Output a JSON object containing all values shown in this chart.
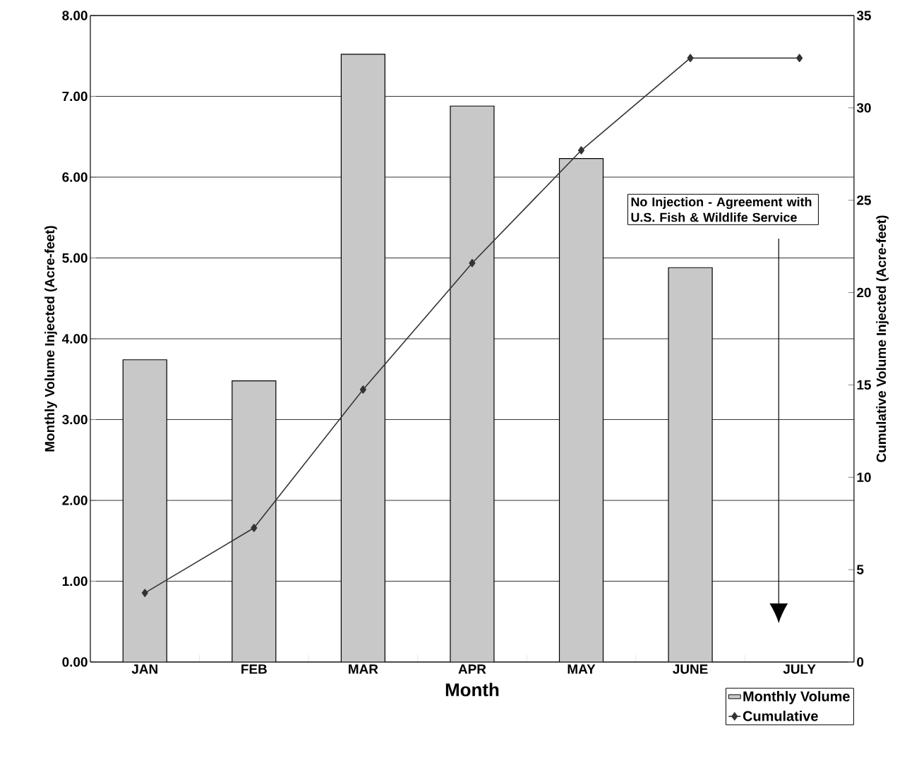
{
  "chart_data": {
    "type": "bar",
    "xlabel": "Month",
    "ylabel": "Monthly Volume Injected (Acre-feet)",
    "y2label": "Cumulative Volume Injected (Acre-feet)",
    "categories": [
      "JAN",
      "FEB",
      "MAR",
      "APR",
      "MAY",
      "JUNE",
      "JULY"
    ],
    "series": [
      {
        "name": "Monthly Volume",
        "color": "#c8c8c8",
        "values": [
          3.74,
          3.48,
          7.52,
          6.88,
          6.23,
          4.88,
          null
        ]
      },
      {
        "name": "Cumulative",
        "type": "line",
        "axis": "y2",
        "color": "#333333",
        "marker": "diamond",
        "values": [
          3.74,
          7.26,
          14.75,
          21.6,
          27.7,
          32.7,
          32.7
        ]
      }
    ],
    "ylim": [
      0,
      8
    ],
    "yticks": [
      {
        "value": 0,
        "label": "0.00"
      },
      {
        "value": 1,
        "label": "1.00"
      },
      {
        "value": 2,
        "label": "2.00"
      },
      {
        "value": 3,
        "label": "3.00"
      },
      {
        "value": 4,
        "label": "4.00"
      },
      {
        "value": 5,
        "label": "5.00"
      },
      {
        "value": 6,
        "label": "6.00"
      },
      {
        "value": 7,
        "label": "7.00"
      },
      {
        "value": 8,
        "label": "8.00"
      }
    ],
    "y2lim": [
      0,
      35
    ],
    "y2ticks": [
      0,
      5,
      10,
      15,
      20,
      25,
      30,
      35
    ],
    "grid": "y",
    "legend": "bottom right",
    "annotations": [
      "No Injection - Agreement with U.S. Fish & Wildlife Service"
    ]
  }
}
